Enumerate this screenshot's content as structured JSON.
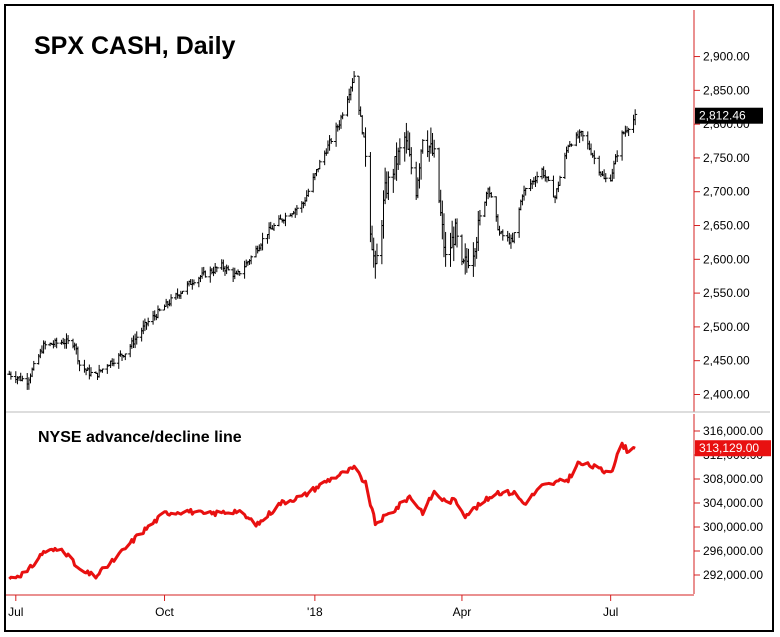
{
  "chart_data": [
    {
      "type": "ohlc",
      "title": "SPX CASH, Daily",
      "ylim": [
        2380,
        2960
      ],
      "y_ticks": [
        "2,900.00",
        "2,850.00",
        "2,800.00",
        "2,750.00",
        "2,700.00",
        "2,650.00",
        "2,600.00",
        "2,550.00",
        "2,500.00",
        "2,450.00",
        "2,400.00"
      ],
      "y_tick_values": [
        2900,
        2850,
        2800,
        2750,
        2700,
        2650,
        2600,
        2550,
        2500,
        2450,
        2400
      ],
      "last_value_label": "2,812.46",
      "last_value": 2812.46,
      "last_value_color": "#000000",
      "bar_color": "#000000",
      "axis_color": "#d42020",
      "series": [
        {
          "x": [
            "2017-06-29",
            "2017-07-10",
            "2017-07-20",
            "2017-08-01",
            "2017-08-08",
            "2017-08-11",
            "2017-08-17",
            "2017-08-21",
            "2017-08-28",
            "2017-09-08",
            "2017-09-21",
            "2017-10-02",
            "2017-10-20",
            "2017-11-06",
            "2017-11-15",
            "2017-11-24",
            "2017-12-04",
            "2017-12-14",
            "2017-12-26",
            "2018-01-05",
            "2018-01-17",
            "2018-01-26",
            "2018-02-02",
            "2018-02-05",
            "2018-02-08",
            "2018-02-14",
            "2018-02-26",
            "2018-03-05",
            "2018-03-09",
            "2018-03-16",
            "2018-03-23",
            "2018-03-29",
            "2018-04-02",
            "2018-04-09",
            "2018-04-18",
            "2018-04-25",
            "2018-05-03",
            "2018-05-09",
            "2018-05-21",
            "2018-05-29",
            "2018-06-06",
            "2018-06-14",
            "2018-06-19",
            "2018-06-28",
            "2018-07-02",
            "2018-07-09",
            "2018-07-17"
          ],
          "values": [
            2430,
            2420,
            2472,
            2478,
            2476,
            2444,
            2432,
            2428,
            2445,
            2462,
            2505,
            2530,
            2570,
            2590,
            2575,
            2603,
            2640,
            2662,
            2683,
            2742,
            2802,
            2872,
            2760,
            2648,
            2581,
            2700,
            2779,
            2704,
            2785,
            2752,
            2600,
            2640,
            2585,
            2615,
            2709,
            2638,
            2625,
            2697,
            2732,
            2692,
            2770,
            2785,
            2765,
            2718,
            2721,
            2784,
            2810
          ]
        }
      ]
    },
    {
      "type": "line",
      "title": "NYSE advance/decline line",
      "ylim": [
        289500,
        317500
      ],
      "y_ticks": [
        "316,000.00",
        "312,000.00",
        "308,000.00",
        "304,000.00",
        "300,000.00",
        "296,000.00",
        "292,000.00"
      ],
      "y_tick_values": [
        316000,
        312000,
        308000,
        304000,
        300000,
        296000,
        292000
      ],
      "last_value_label": "313,129.00",
      "last_value": 313129,
      "line_color": "#e81010",
      "label_color": "#e81010",
      "series": [
        {
          "x": [
            "2017-06-29",
            "2017-07-10",
            "2017-07-20",
            "2017-08-01",
            "2017-08-11",
            "2017-08-21",
            "2017-09-01",
            "2017-09-15",
            "2017-10-02",
            "2017-10-16",
            "2017-10-27",
            "2017-11-15",
            "2017-11-28",
            "2017-12-12",
            "2017-12-26",
            "2018-01-10",
            "2018-01-26",
            "2018-02-02",
            "2018-02-08",
            "2018-02-20",
            "2018-03-01",
            "2018-03-09",
            "2018-03-16",
            "2018-03-23",
            "2018-03-29",
            "2018-04-04",
            "2018-04-13",
            "2018-04-23",
            "2018-05-04",
            "2018-05-10",
            "2018-05-21",
            "2018-06-06",
            "2018-06-12",
            "2018-06-20",
            "2018-06-28",
            "2018-07-03",
            "2018-07-09",
            "2018-07-12",
            "2018-07-17"
          ],
          "values": [
            291400,
            292500,
            295900,
            296300,
            292700,
            291800,
            294500,
            298400,
            302300,
            302700,
            302100,
            302700,
            300400,
            304000,
            305200,
            307800,
            309800,
            307200,
            300600,
            302900,
            305100,
            302500,
            305800,
            304200,
            304500,
            302000,
            303700,
            305800,
            305700,
            303900,
            306800,
            307900,
            310600,
            310200,
            309300,
            309700,
            313900,
            312800,
            313129
          ]
        }
      ]
    }
  ],
  "x_axis": {
    "ticks": [
      "Jul",
      "Oct",
      "'18",
      "Apr",
      "Jul"
    ],
    "tick_dates": [
      "2017-07-03",
      "2017-10-02",
      "2018-01-02",
      "2018-04-02",
      "2018-07-02"
    ],
    "range": [
      "2017-06-27",
      "2018-08-22"
    ]
  }
}
